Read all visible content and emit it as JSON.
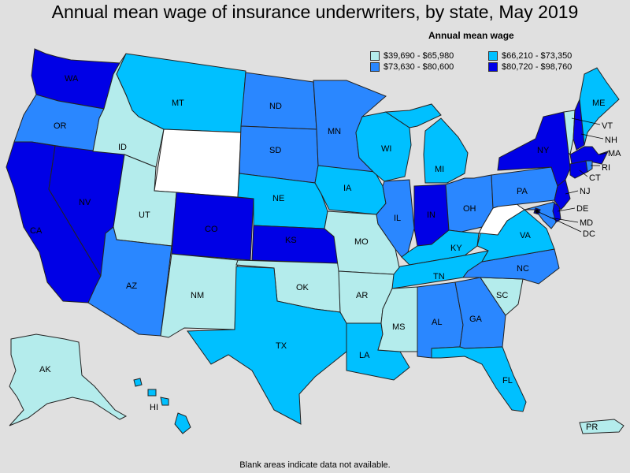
{
  "title": "Annual mean wage of insurance underwriters, by state, May 2019",
  "legend": {
    "title": "Annual mean wage",
    "items": [
      {
        "label": "$39,690 - $65,980",
        "color": "#b4ecec"
      },
      {
        "label": "$66,210 - $73,350",
        "color": "#00c0ff"
      },
      {
        "label": "$73,630 - $80,600",
        "color": "#2a87ff"
      },
      {
        "label": "$80,720 - $98,760",
        "color": "#0000e6"
      }
    ]
  },
  "footnote": "Blank areas indicate data not available.",
  "colors": {
    "nodata": "#ffffff",
    "background": "#e0e0e0"
  },
  "states": {
    "WA": {
      "label": "WA",
      "bin": 3
    },
    "OR": {
      "label": "OR",
      "bin": 2
    },
    "CA": {
      "label": "CA",
      "bin": 3
    },
    "NV": {
      "label": "NV",
      "bin": 3
    },
    "ID": {
      "label": "ID",
      "bin": 0
    },
    "MT": {
      "label": "MT",
      "bin": 1
    },
    "WY": {
      "label": "",
      "bin": -1
    },
    "UT": {
      "label": "UT",
      "bin": 0
    },
    "AZ": {
      "label": "AZ",
      "bin": 2
    },
    "CO": {
      "label": "CO",
      "bin": 3
    },
    "NM": {
      "label": "NM",
      "bin": 0
    },
    "ND": {
      "label": "ND",
      "bin": 2
    },
    "SD": {
      "label": "SD",
      "bin": 2
    },
    "NE": {
      "label": "NE",
      "bin": 1
    },
    "KS": {
      "label": "KS",
      "bin": 3
    },
    "OK": {
      "label": "OK",
      "bin": 0
    },
    "TX": {
      "label": "TX",
      "bin": 1
    },
    "MN": {
      "label": "MN",
      "bin": 2
    },
    "IA": {
      "label": "IA",
      "bin": 1
    },
    "MO": {
      "label": "MO",
      "bin": 0
    },
    "AR": {
      "label": "AR",
      "bin": 0
    },
    "LA": {
      "label": "LA",
      "bin": 1
    },
    "WI": {
      "label": "WI",
      "bin": 1
    },
    "IL": {
      "label": "IL",
      "bin": 2
    },
    "MI": {
      "label": "MI",
      "bin": 1
    },
    "IN": {
      "label": "IN",
      "bin": 3
    },
    "OH": {
      "label": "OH",
      "bin": 2
    },
    "KY": {
      "label": "KY",
      "bin": 1
    },
    "TN": {
      "label": "TN",
      "bin": 1
    },
    "MS": {
      "label": "MS",
      "bin": 0
    },
    "AL": {
      "label": "AL",
      "bin": 2
    },
    "GA": {
      "label": "GA",
      "bin": 2
    },
    "FL": {
      "label": "FL",
      "bin": 1
    },
    "SC": {
      "label": "SC",
      "bin": 0
    },
    "NC": {
      "label": "NC",
      "bin": 2
    },
    "VA": {
      "label": "VA",
      "bin": 1
    },
    "WV": {
      "label": "",
      "bin": -1
    },
    "PA": {
      "label": "PA",
      "bin": 2
    },
    "NY": {
      "label": "NY",
      "bin": 3
    },
    "VT": {
      "label": "VT",
      "bin": 0
    },
    "NH": {
      "label": "NH",
      "bin": 3
    },
    "ME": {
      "label": "ME",
      "bin": 1
    },
    "MA": {
      "label": "MA",
      "bin": 3
    },
    "RI": {
      "label": "RI",
      "bin": 2
    },
    "CT": {
      "label": "CT",
      "bin": 3
    },
    "NJ": {
      "label": "NJ",
      "bin": 3
    },
    "DE": {
      "label": "DE",
      "bin": 3
    },
    "MD": {
      "label": "MD",
      "bin": 2
    },
    "DC": {
      "label": "DC",
      "bin": 3
    },
    "AK": {
      "label": "AK",
      "bin": 0
    },
    "HI": {
      "label": "HI",
      "bin": 1
    },
    "PR": {
      "label": "PR",
      "bin": 0
    }
  }
}
